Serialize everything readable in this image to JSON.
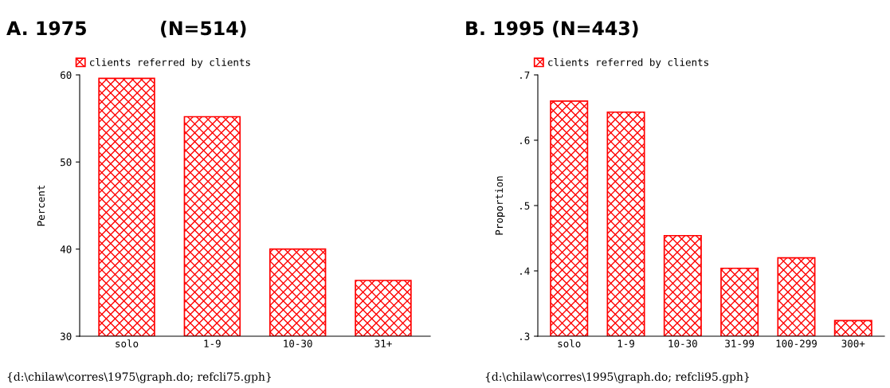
{
  "chart_data": [
    {
      "type": "bar",
      "title": "A. 1975           (N=514)",
      "ylabel": "Percent",
      "categories": [
        "solo",
        "1-9",
        "10-30",
        "31+"
      ],
      "series": [
        {
          "name": "clients referred by clients",
          "color": "#ff0000",
          "values": [
            59.6,
            55.2,
            40.0,
            36.4
          ]
        }
      ],
      "ylim": [
        30,
        60
      ],
      "yticks": [
        30,
        40,
        50,
        60
      ],
      "legend": "top left",
      "grid": false,
      "annotations": [
        "{d:\\chilaw\\corres\\1975\\graph.do; refcli75.gph}"
      ]
    },
    {
      "type": "bar",
      "title": "B. 1995 (N=443)",
      "ylabel": "Proportion",
      "categories": [
        "solo",
        "1-9",
        "10-30",
        "31-99",
        "100-299",
        "300+"
      ],
      "series": [
        {
          "name": "clients referred by clients",
          "color": "#ff0000",
          "values": [
            0.66,
            0.643,
            0.454,
            0.404,
            0.42,
            0.324
          ]
        }
      ],
      "ylim": [
        0.3,
        0.7
      ],
      "yticks": [
        {
          "value": 0.3,
          "label": ".3"
        },
        {
          "value": 0.4,
          "label": ".4"
        },
        {
          "value": 0.5,
          "label": ".5"
        },
        {
          "value": 0.6,
          "label": ".6"
        },
        {
          "value": 0.7,
          "label": ".7"
        }
      ],
      "legend": "top left",
      "grid": false,
      "annotations": [
        "{d:\\chilaw\\corres\\1995\\graph.do; refcli95.gph}"
      ]
    }
  ]
}
